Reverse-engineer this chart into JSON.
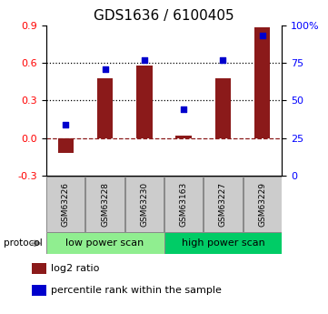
{
  "title": "GDS1636 / 6100405",
  "samples": [
    "GSM63226",
    "GSM63228",
    "GSM63230",
    "GSM63163",
    "GSM63227",
    "GSM63229"
  ],
  "log2_ratio": [
    -0.12,
    0.48,
    0.58,
    0.02,
    0.48,
    0.88
  ],
  "percentile_rank": [
    34,
    71,
    77,
    44,
    77,
    93
  ],
  "bar_color": "#8B1A1A",
  "dot_color": "#0000CD",
  "protocol_groups": [
    {
      "label": "low power scan",
      "start": 0,
      "end": 3,
      "color": "#90EE90"
    },
    {
      "label": "high power scan",
      "start": 3,
      "end": 6,
      "color": "#00CC66"
    }
  ],
  "protocol_label": "protocol",
  "ylim_left": [
    -0.3,
    0.9
  ],
  "ylim_right": [
    0,
    100
  ],
  "yticks_left": [
    -0.3,
    0.0,
    0.3,
    0.6,
    0.9
  ],
  "yticks_right": [
    0,
    25,
    50,
    75,
    100
  ],
  "hlines": [
    0.3,
    0.6
  ],
  "zero_line_y": 0.0,
  "legend_items": [
    "log2 ratio",
    "percentile rank within the sample"
  ],
  "bg_color": "#FFFFFF",
  "title_fontsize": 11,
  "bar_width": 0.4
}
